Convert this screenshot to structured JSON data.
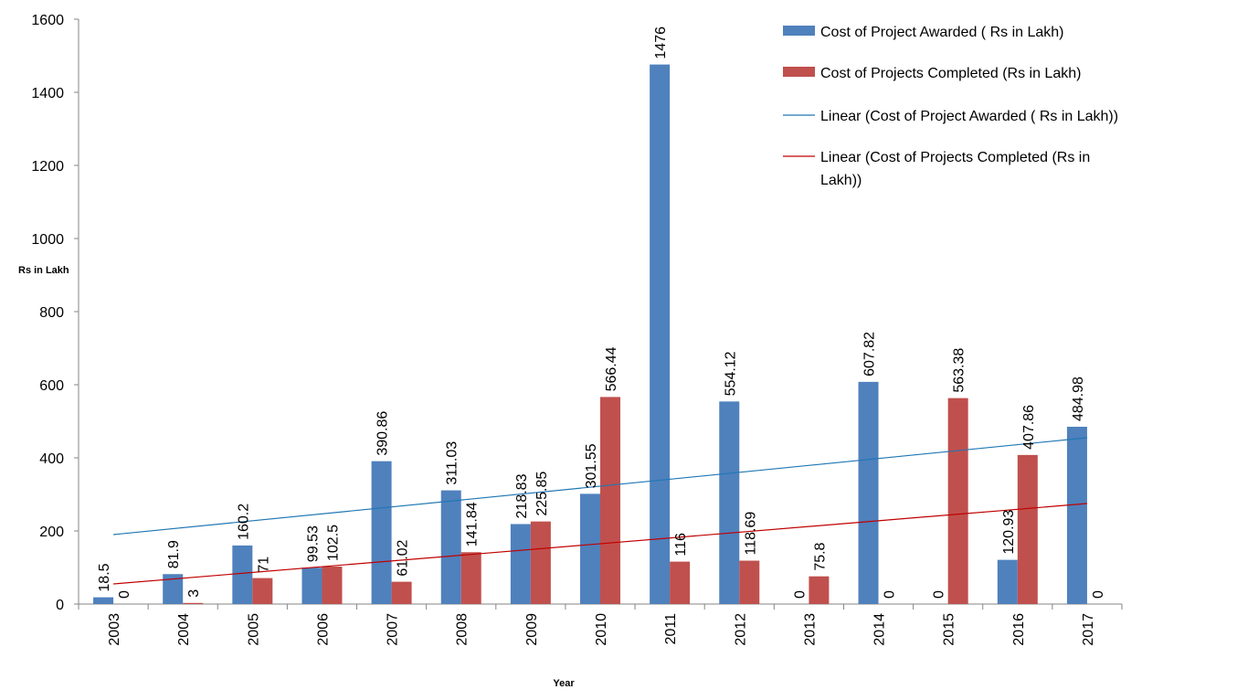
{
  "chart_data": {
    "type": "bar",
    "categories": [
      "2003",
      "2004",
      "2005",
      "2006",
      "2007",
      "2008",
      "2009",
      "2010",
      "2011",
      "2012",
      "2013",
      "2014",
      "2015",
      "2016",
      "2017"
    ],
    "series": [
      {
        "name": "Cost of Project Awarded ( Rs in Lakh)",
        "values": [
          18.5,
          81.9,
          160.2,
          99.53,
          390.86,
          311.03,
          218.83,
          301.55,
          1476,
          554.12,
          0,
          607.82,
          0,
          120.93,
          484.98
        ],
        "labels": [
          "18.5",
          "81.9",
          "160.2",
          "99.53",
          "390.86",
          "311.03",
          "218.83",
          "301.55",
          "1476",
          "554.12",
          "0",
          "607.82",
          "0",
          "120.93",
          "484.98"
        ],
        "color": "#4F81BD"
      },
      {
        "name": "Cost of Projects Completed (Rs in Lakh)",
        "values": [
          0,
          3,
          71,
          102.5,
          61.02,
          141.84,
          225.85,
          566.44,
          116,
          118.69,
          75.8,
          0,
          563.38,
          407.86,
          0
        ],
        "labels": [
          "0",
          "3",
          "71",
          "102.5",
          "61.02",
          "141.84",
          "225.85",
          "566.44",
          "116",
          "118.69",
          "75.8",
          "0",
          "563.38",
          "407.86",
          "0"
        ],
        "color": "#C0504D"
      }
    ],
    "trendlines": [
      {
        "name": "Linear (Cost of Project Awarded ( Rs in Lakh))",
        "start": 190,
        "end": 455,
        "color": "#1F77B4"
      },
      {
        "name": "Linear (Cost of Projects Completed (Rs in Lakh))",
        "name_lines": [
          "Linear (Cost of Projects Completed (Rs in",
          "Lakh))"
        ],
        "start": 55,
        "end": 275,
        "color": "#C00000"
      }
    ],
    "xlabel": "Year",
    "ylabel": "Rs in Lakh",
    "ylim": [
      0,
      1600
    ],
    "yticks": [
      0,
      200,
      400,
      600,
      800,
      1000,
      1200,
      1400,
      1600
    ],
    "grid": false,
    "legend_position": "top-right"
  }
}
